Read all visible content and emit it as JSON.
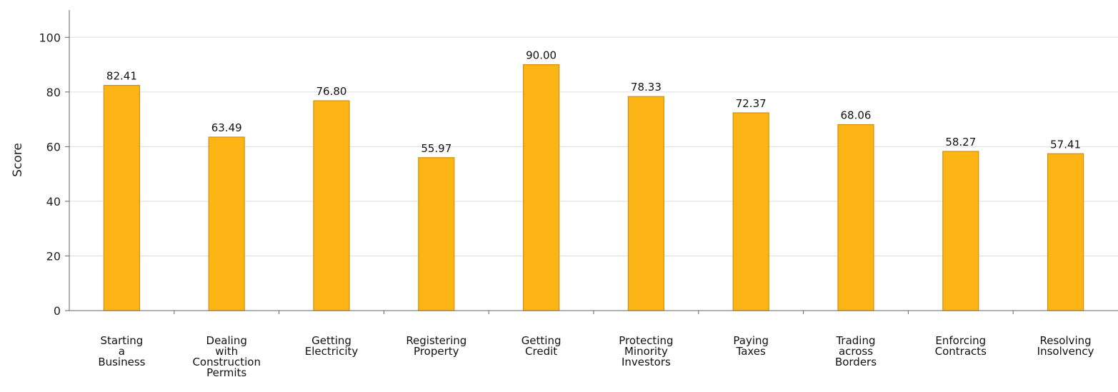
{
  "chart_data": {
    "type": "bar",
    "title": "",
    "xlabel": "",
    "ylabel": "Score",
    "ylim": [
      0,
      110
    ],
    "yticks": [
      0,
      20,
      40,
      60,
      80,
      100
    ],
    "grid": true,
    "bar_color": "#FDB515",
    "bar_edge_color": "#D4900A",
    "categories": [
      [
        "Starting",
        "a",
        "Business"
      ],
      [
        "Dealing",
        "with",
        "Construction",
        "Permits"
      ],
      [
        "Getting",
        "Electricity"
      ],
      [
        "Registering",
        "Property"
      ],
      [
        "Getting",
        "Credit"
      ],
      [
        "Protecting",
        "Minority",
        "Investors"
      ],
      [
        "Paying",
        "Taxes"
      ],
      [
        "Trading",
        "across",
        "Borders"
      ],
      [
        "Enforcing",
        "Contracts"
      ],
      [
        "Resolving",
        "Insolvency"
      ]
    ],
    "values": [
      82.41,
      63.49,
      76.8,
      55.97,
      90.0,
      78.33,
      72.37,
      68.06,
      58.27,
      57.41
    ],
    "value_labels": [
      "82.41",
      "63.49",
      "76.80",
      "55.97",
      "90.00",
      "78.33",
      "72.37",
      "68.06",
      "58.27",
      "57.41"
    ]
  }
}
